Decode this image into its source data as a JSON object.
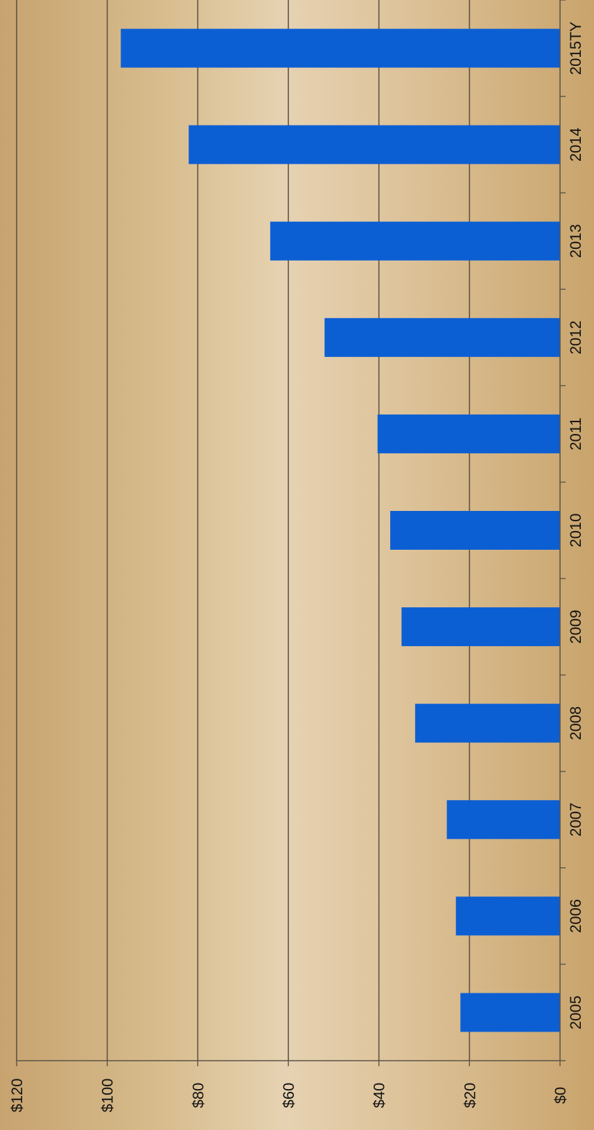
{
  "chart_data": {
    "type": "bar",
    "orientation": "rotated",
    "categories": [
      "2005",
      "2006",
      "2007",
      "2008",
      "2009",
      "2010",
      "2011",
      "2012",
      "2013",
      "2014",
      "2015TY"
    ],
    "values": [
      22,
      23,
      25,
      32,
      35,
      37.5,
      40.3,
      52,
      64,
      82,
      97
    ],
    "ylim": [
      0,
      120
    ],
    "yticks": [
      "$0",
      "$20",
      "$40",
      "$60",
      "$80",
      "$100",
      "$120"
    ],
    "bar_color": "#0c5fd3",
    "grid": true
  }
}
